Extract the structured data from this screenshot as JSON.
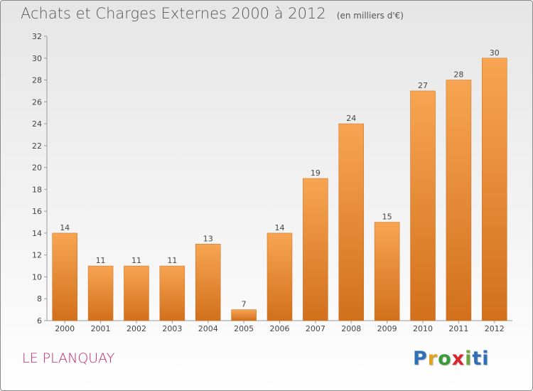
{
  "header": {
    "title": "Achats et Charges Externes 2000 à 2012",
    "unit": "(en milliers d'€)"
  },
  "footer": {
    "commune": "LE PLANQUAY",
    "logo_text": "Proxiti",
    "logo_colors": [
      "#2f6fb8",
      "#e0a020",
      "#3a9a3a",
      "#d8262e",
      "#6aa43a",
      "#2f6fb8"
    ]
  },
  "chart_data": {
    "type": "bar",
    "title": "Achats et Charges Externes 2000 à 2012",
    "subtitle": "(en milliers d'€)",
    "categories": [
      "2000",
      "2001",
      "2002",
      "2003",
      "2004",
      "2005",
      "2006",
      "2007",
      "2008",
      "2009",
      "2010",
      "2011",
      "2012"
    ],
    "values": [
      14,
      11,
      11,
      11,
      13,
      7,
      14,
      19,
      24,
      15,
      27,
      28,
      30
    ],
    "ylim": [
      6,
      32
    ],
    "yticks": [
      6,
      8,
      10,
      12,
      14,
      16,
      18,
      20,
      22,
      24,
      26,
      28,
      30,
      32
    ],
    "grid": false,
    "bar_color_top": "#f7a552",
    "bar_color_bottom": "#d2701c"
  }
}
